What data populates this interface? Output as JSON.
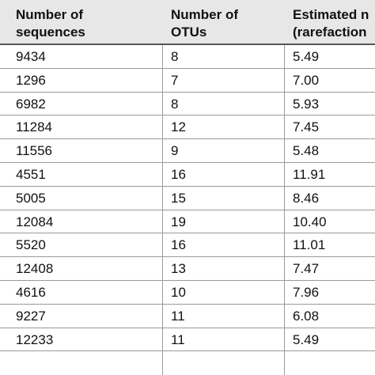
{
  "table": {
    "headers": [
      {
        "line1": "Number of",
        "line2": "sequences"
      },
      {
        "line1": "Number of",
        "line2": "OTUs"
      },
      {
        "line1": "Estimated n",
        "line2": "(rarefaction"
      }
    ],
    "rows": [
      {
        "sequences": "9434",
        "otus": "8",
        "estimated": "5.49"
      },
      {
        "sequences": "1296",
        "otus": "7",
        "estimated": "7.00"
      },
      {
        "sequences": "6982",
        "otus": "8",
        "estimated": "5.93"
      },
      {
        "sequences": "11284",
        "otus": "12",
        "estimated": "7.45"
      },
      {
        "sequences": "11556",
        "otus": "9",
        "estimated": "5.48"
      },
      {
        "sequences": "4551",
        "otus": "16",
        "estimated": "11.91"
      },
      {
        "sequences": "5005",
        "otus": "15",
        "estimated": "8.46"
      },
      {
        "sequences": "12084",
        "otus": "19",
        "estimated": "10.40"
      },
      {
        "sequences": "5520",
        "otus": "16",
        "estimated": "11.01"
      },
      {
        "sequences": "12408",
        "otus": "13",
        "estimated": "7.47"
      },
      {
        "sequences": "4616",
        "otus": "10",
        "estimated": "7.96"
      },
      {
        "sequences": "9227",
        "otus": "11",
        "estimated": "6.08"
      },
      {
        "sequences": "12233",
        "otus": "11",
        "estimated": "5.49"
      }
    ]
  }
}
